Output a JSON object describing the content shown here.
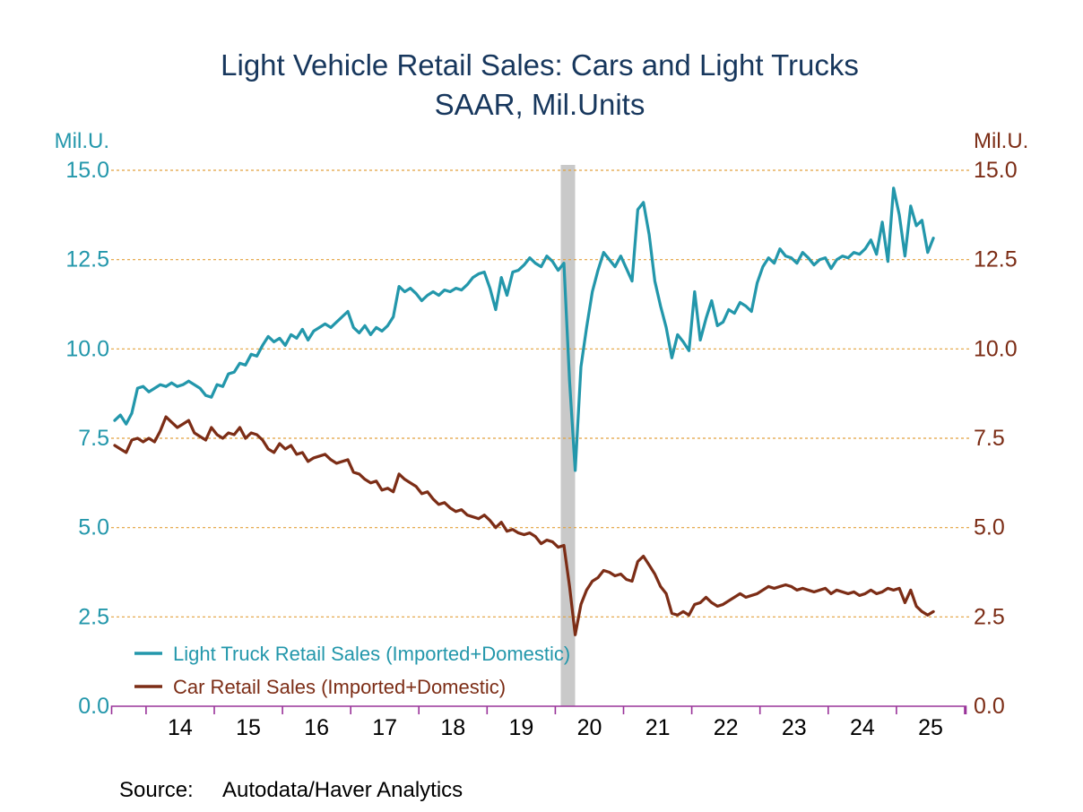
{
  "colors": {
    "truck_teal": "#2397AB",
    "car_brown": "#7C2D16",
    "title_navy": "#17375D",
    "gridline_orange": "#E2A13D",
    "axis_purple": "#993399",
    "recession_gray": "#C9C9C9",
    "x_tick_label_black": "#000000"
  },
  "header": {
    "title_line1": "Light Vehicle Retail Sales: Cars and Light Trucks",
    "title_line2": "SAAR, Mil.Units"
  },
  "left_axis": {
    "unit_label": "Mil.U."
  },
  "right_axis": {
    "unit_label": "Mil.U."
  },
  "legend": {
    "items": [
      {
        "label": "Light Truck Retail Sales (Imported+Domestic)",
        "color_key": "truck_teal"
      },
      {
        "label": "Car Retail Sales (Imported+Domestic)",
        "color_key": "car_brown"
      }
    ]
  },
  "footer": {
    "source_label": "Source:",
    "source_value": "Autodata/Haver Analytics"
  },
  "chart_data": {
    "type": "line",
    "title": "Light Vehicle Retail Sales: Cars and Light Trucks",
    "subtitle": "SAAR, Mil.Units",
    "frequency": "monthly",
    "series_start": "2013-07",
    "grid": "horizontal dashed",
    "legend_position": "bottom-left inside plot",
    "y_axis": {
      "min": 0,
      "max": 15,
      "tick_step": 2.5,
      "tick_labels": [
        "0.0",
        "2.5",
        "5.0",
        "7.5",
        "10.0",
        "12.5",
        "15.0"
      ],
      "unit_label": "Mil.U."
    },
    "x_axis": {
      "domain_start": 2013.5417,
      "domain_end": 2026.0,
      "tick_years_start": 2014,
      "tick_years_end": 2026,
      "tick_labels": [
        "14",
        "15",
        "16",
        "17",
        "18",
        "19",
        "20",
        "21",
        "22",
        "23",
        "24",
        "25"
      ]
    },
    "recession_band": {
      "from": 2020.08,
      "to": 2020.29
    },
    "series": [
      {
        "name": "Light Truck Retail Sales (Imported+Domestic)",
        "color_key": "truck_teal",
        "values": [
          8.0,
          8.15,
          7.9,
          8.2,
          8.9,
          8.95,
          8.8,
          8.9,
          9.0,
          8.95,
          9.05,
          8.95,
          9.0,
          9.1,
          9.0,
          8.9,
          8.7,
          8.65,
          9.0,
          8.95,
          9.3,
          9.35,
          9.6,
          9.55,
          9.85,
          9.8,
          10.1,
          10.35,
          10.2,
          10.3,
          10.1,
          10.4,
          10.3,
          10.55,
          10.25,
          10.5,
          10.6,
          10.7,
          10.6,
          10.75,
          10.9,
          11.05,
          10.6,
          10.45,
          10.65,
          10.4,
          10.6,
          10.5,
          10.65,
          10.9,
          11.75,
          11.6,
          11.7,
          11.55,
          11.35,
          11.5,
          11.6,
          11.5,
          11.65,
          11.6,
          11.7,
          11.65,
          11.8,
          12.0,
          12.1,
          12.15,
          11.7,
          11.1,
          12.0,
          11.5,
          12.15,
          12.2,
          12.35,
          12.55,
          12.4,
          12.3,
          12.6,
          12.45,
          12.2,
          12.4,
          9.1,
          6.6,
          9.5,
          10.6,
          11.6,
          12.2,
          12.7,
          12.5,
          12.3,
          12.6,
          12.25,
          11.9,
          13.9,
          14.1,
          13.2,
          11.9,
          11.2,
          10.6,
          9.75,
          10.4,
          10.2,
          9.95,
          11.6,
          10.25,
          10.85,
          11.35,
          10.65,
          10.75,
          11.1,
          11.0,
          11.3,
          11.2,
          11.05,
          11.85,
          12.3,
          12.55,
          12.4,
          12.8,
          12.6,
          12.55,
          12.4,
          12.7,
          12.55,
          12.35,
          12.5,
          12.55,
          12.25,
          12.5,
          12.6,
          12.55,
          12.7,
          12.65,
          12.8,
          13.05,
          12.65,
          13.55,
          12.45,
          14.5,
          13.75,
          12.6,
          14.0,
          13.45,
          13.6,
          12.7,
          13.1
        ]
      },
      {
        "name": "Car Retail Sales (Imported+Domestic)",
        "color_key": "car_brown",
        "values": [
          7.3,
          7.2,
          7.1,
          7.45,
          7.5,
          7.4,
          7.5,
          7.4,
          7.7,
          8.1,
          7.95,
          7.8,
          7.9,
          8.0,
          7.65,
          7.55,
          7.45,
          7.8,
          7.6,
          7.5,
          7.65,
          7.6,
          7.8,
          7.5,
          7.65,
          7.6,
          7.45,
          7.2,
          7.1,
          7.35,
          7.2,
          7.3,
          7.05,
          7.1,
          6.85,
          6.95,
          7.0,
          7.05,
          6.9,
          6.8,
          6.85,
          6.9,
          6.55,
          6.5,
          6.35,
          6.25,
          6.3,
          6.05,
          6.1,
          6.0,
          6.5,
          6.35,
          6.25,
          6.15,
          5.95,
          6.0,
          5.8,
          5.65,
          5.7,
          5.55,
          5.45,
          5.5,
          5.35,
          5.3,
          5.25,
          5.35,
          5.2,
          5.0,
          5.15,
          4.9,
          4.95,
          4.85,
          4.8,
          4.85,
          4.75,
          4.55,
          4.65,
          4.6,
          4.45,
          4.5,
          3.35,
          2.0,
          2.85,
          3.25,
          3.5,
          3.6,
          3.8,
          3.75,
          3.65,
          3.7,
          3.55,
          3.5,
          4.05,
          4.2,
          3.95,
          3.7,
          3.35,
          3.15,
          2.6,
          2.55,
          2.65,
          2.55,
          2.85,
          2.9,
          3.05,
          2.9,
          2.8,
          2.85,
          2.95,
          3.05,
          3.15,
          3.05,
          3.1,
          3.15,
          3.25,
          3.35,
          3.3,
          3.35,
          3.4,
          3.35,
          3.25,
          3.3,
          3.25,
          3.2,
          3.25,
          3.3,
          3.15,
          3.25,
          3.2,
          3.15,
          3.2,
          3.1,
          3.15,
          3.25,
          3.15,
          3.2,
          3.3,
          3.25,
          3.3,
          2.9,
          3.25,
          2.8,
          2.65,
          2.55,
          2.65
        ]
      }
    ]
  }
}
